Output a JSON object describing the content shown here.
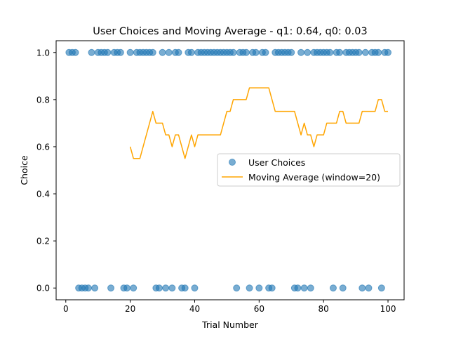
{
  "chart_data": {
    "type": "scatter",
    "title": "User Choices and Moving Average - q1: 0.64, q0: 0.03",
    "xlabel": "Trial Number",
    "ylabel": "Choice",
    "xlim": [
      -3,
      105
    ],
    "ylim": [
      -0.05,
      1.05
    ],
    "x_ticks": [
      0,
      20,
      40,
      60,
      80,
      100
    ],
    "x_tick_labels": [
      "0",
      "20",
      "40",
      "60",
      "80",
      "100"
    ],
    "y_ticks": [
      0.0,
      0.2,
      0.4,
      0.6,
      0.8,
      1.0
    ],
    "y_tick_labels": [
      "0.0",
      "0.2",
      "0.4",
      "0.6",
      "0.8",
      "1.0"
    ],
    "grid": false,
    "legend": {
      "placement": "center-right",
      "entries": [
        "User Choices",
        "Moving Average (window=20)"
      ]
    },
    "series": [
      {
        "name": "User Choices",
        "kind": "scatter",
        "color": "#1f77b4",
        "alpha": 0.6,
        "x": [
          1,
          2,
          3,
          4,
          5,
          6,
          7,
          8,
          9,
          10,
          11,
          12,
          13,
          14,
          15,
          16,
          17,
          18,
          19,
          20,
          21,
          22,
          23,
          24,
          25,
          26,
          27,
          28,
          29,
          30,
          31,
          32,
          33,
          34,
          35,
          36,
          37,
          38,
          39,
          40,
          41,
          42,
          43,
          44,
          45,
          46,
          47,
          48,
          49,
          50,
          51,
          52,
          53,
          54,
          55,
          56,
          57,
          58,
          59,
          60,
          61,
          62,
          63,
          64,
          65,
          66,
          67,
          68,
          69,
          70,
          71,
          72,
          73,
          74,
          75,
          76,
          77,
          78,
          79,
          80,
          81,
          82,
          83,
          84,
          85,
          86,
          87,
          88,
          89,
          90,
          91,
          92,
          93,
          94,
          95,
          96,
          97,
          98,
          99,
          100
        ],
        "y": [
          1,
          1,
          1,
          0,
          0,
          0,
          0,
          1,
          0,
          1,
          1,
          1,
          1,
          0,
          1,
          1,
          1,
          0,
          0,
          1,
          0,
          1,
          1,
          1,
          1,
          1,
          1,
          0,
          0,
          1,
          0,
          1,
          0,
          1,
          1,
          0,
          0,
          1,
          1,
          0,
          1,
          1,
          1,
          1,
          1,
          1,
          1,
          1,
          1,
          1,
          1,
          1,
          0,
          1,
          1,
          1,
          0,
          1,
          1,
          0,
          1,
          1,
          0,
          0,
          1,
          1,
          1,
          1,
          1,
          1,
          0,
          0,
          1,
          0,
          1,
          0,
          1,
          1,
          1,
          1,
          1,
          1,
          0,
          1,
          1,
          0,
          1,
          1,
          1,
          1,
          1,
          0,
          1,
          0,
          1,
          1,
          1,
          0,
          1,
          1
        ]
      },
      {
        "name": "Moving Average (window=20)",
        "kind": "line",
        "color": "#ffa500",
        "x": [
          20,
          21,
          22,
          23,
          24,
          25,
          26,
          27,
          28,
          29,
          30,
          31,
          32,
          33,
          34,
          35,
          36,
          37,
          38,
          39,
          40,
          41,
          42,
          43,
          44,
          45,
          46,
          47,
          48,
          49,
          50,
          51,
          52,
          53,
          54,
          55,
          56,
          57,
          58,
          59,
          60,
          61,
          62,
          63,
          64,
          65,
          66,
          67,
          68,
          69,
          70,
          71,
          72,
          73,
          74,
          75,
          76,
          77,
          78,
          79,
          80,
          81,
          82,
          83,
          84,
          85,
          86,
          87,
          88,
          89,
          90,
          91,
          92,
          93,
          94,
          95,
          96,
          97,
          98,
          99,
          100
        ],
        "y": [
          0.6,
          0.55,
          0.55,
          0.55,
          0.6,
          0.65,
          0.7,
          0.75,
          0.7,
          0.7,
          0.7,
          0.65,
          0.65,
          0.6,
          0.65,
          0.65,
          0.6,
          0.55,
          0.6,
          0.65,
          0.6,
          0.65,
          0.65,
          0.65,
          0.65,
          0.65,
          0.65,
          0.65,
          0.65,
          0.7,
          0.75,
          0.75,
          0.8,
          0.8,
          0.8,
          0.8,
          0.8,
          0.85,
          0.85,
          0.85,
          0.85,
          0.85,
          0.85,
          0.85,
          0.8,
          0.75,
          0.75,
          0.75,
          0.75,
          0.75,
          0.75,
          0.75,
          0.7,
          0.65,
          0.7,
          0.65,
          0.65,
          0.6,
          0.65,
          0.65,
          0.65,
          0.7,
          0.7,
          0.7,
          0.7,
          0.75,
          0.75,
          0.7,
          0.7,
          0.7,
          0.7,
          0.7,
          0.75,
          0.75,
          0.75,
          0.75,
          0.75,
          0.8,
          0.8,
          0.75,
          0.75
        ]
      }
    ]
  }
}
